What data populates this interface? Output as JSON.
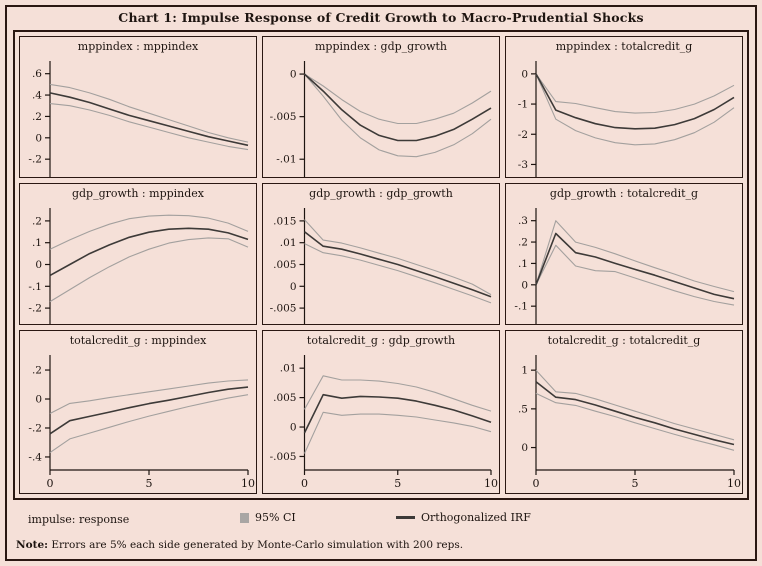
{
  "title": "Chart 1: Impulse Response of Credit Growth to Macro-Prudential Shocks",
  "footer": {
    "impulse_label": "impulse: response",
    "legend": {
      "ci_label": "95% CI",
      "irf_label": "Orthogonalized IRF"
    },
    "note_bold": "Note:",
    "note_text": " Errors are 5% each side generated by Monte-Carlo simulation with 200 reps."
  },
  "colors": {
    "background": "#f5e0d8",
    "border_dark": "#2a1712",
    "irf_line": "#3d3a38",
    "ci_line": "#a3a09e",
    "axis": "#1d1410",
    "legend_box": "#a9a6a4"
  },
  "chart_data": {
    "type": "line",
    "x": [
      0,
      1,
      2,
      3,
      4,
      5,
      6,
      7,
      8,
      9,
      10
    ],
    "xticks": {
      "values": [
        0,
        5,
        10
      ],
      "labels": [
        "0",
        "5",
        "10"
      ]
    },
    "legend_position": "bottom",
    "grid": false,
    "series_names": [
      "95% CI lower",
      "95% CI upper",
      "Orthogonalized IRF"
    ],
    "panels": [
      {
        "title": "mppindex : mppindex",
        "yticks": {
          "labels": [
            ".6",
            ".4",
            ".2",
            "0",
            "-.2"
          ],
          "values": [
            0.6,
            0.4,
            0.2,
            0,
            -0.2
          ]
        },
        "ylim": [
          -0.32,
          0.7
        ],
        "show_xaxis": false,
        "irf": [
          0.42,
          0.38,
          0.33,
          0.27,
          0.21,
          0.16,
          0.11,
          0.06,
          0.01,
          -0.03,
          -0.07
        ],
        "upper": [
          0.5,
          0.47,
          0.42,
          0.36,
          0.29,
          0.23,
          0.17,
          0.11,
          0.05,
          0.0,
          -0.04
        ],
        "lower": [
          0.32,
          0.3,
          0.26,
          0.21,
          0.15,
          0.1,
          0.05,
          0.0,
          -0.04,
          -0.08,
          -0.11
        ]
      },
      {
        "title": "mppindex : gdp_growth",
        "yticks": {
          "labels": [
            "0",
            "-.005",
            "-.01"
          ],
          "values": [
            0,
            -0.005,
            -0.01
          ]
        },
        "ylim": [
          -0.0115,
          0.0013
        ],
        "show_xaxis": false,
        "irf": [
          0,
          -0.002,
          -0.0042,
          -0.006,
          -0.0072,
          -0.0078,
          -0.0078,
          -0.0073,
          -0.0065,
          -0.0053,
          -0.004
        ],
        "upper": [
          0,
          -0.0014,
          -0.003,
          -0.0044,
          -0.0053,
          -0.0058,
          -0.0058,
          -0.0053,
          -0.0046,
          -0.0034,
          -0.002
        ],
        "lower": [
          0,
          -0.0026,
          -0.0054,
          -0.0075,
          -0.0089,
          -0.0096,
          -0.0097,
          -0.0092,
          -0.0083,
          -0.007,
          -0.0053
        ]
      },
      {
        "title": "mppindex : totalcredit_g",
        "yticks": {
          "labels": [
            "0",
            "-1",
            "-2",
            "-3"
          ],
          "values": [
            0,
            -1,
            -2,
            -3
          ]
        },
        "ylim": [
          -3.25,
          0.36
        ],
        "show_xaxis": false,
        "irf": [
          0,
          -1.2,
          -1.45,
          -1.65,
          -1.78,
          -1.82,
          -1.8,
          -1.68,
          -1.48,
          -1.18,
          -0.78
        ],
        "upper": [
          0,
          -0.92,
          -0.98,
          -1.12,
          -1.25,
          -1.3,
          -1.28,
          -1.18,
          -1.0,
          -0.73,
          -0.38
        ],
        "lower": [
          0,
          -1.5,
          -1.88,
          -2.12,
          -2.28,
          -2.35,
          -2.32,
          -2.18,
          -1.95,
          -1.6,
          -1.12
        ]
      },
      {
        "title": "gdp_growth : mppindex",
        "yticks": {
          "labels": [
            ".2",
            ".1",
            "0",
            "-.1",
            "-.2"
          ],
          "values": [
            0.2,
            0.1,
            0,
            -0.1,
            -0.2
          ]
        },
        "ylim": [
          -0.25,
          0.25
        ],
        "show_xaxis": false,
        "irf": [
          -0.05,
          0.0,
          0.05,
          0.09,
          0.125,
          0.148,
          0.162,
          0.166,
          0.162,
          0.145,
          0.115
        ],
        "upper": [
          0.07,
          0.113,
          0.152,
          0.185,
          0.21,
          0.222,
          0.226,
          0.224,
          0.213,
          0.19,
          0.152
        ],
        "lower": [
          -0.17,
          -0.115,
          -0.06,
          -0.01,
          0.035,
          0.07,
          0.098,
          0.114,
          0.122,
          0.118,
          0.08
        ]
      },
      {
        "title": "gdp_growth : gdp_growth",
        "yticks": {
          "labels": [
            ".015",
            ".01",
            ".005",
            "0",
            "-.005"
          ],
          "values": [
            0.015,
            0.01,
            0.005,
            0,
            -0.005
          ]
        },
        "ylim": [
          -0.0075,
          0.0175
        ],
        "show_xaxis": false,
        "irf": [
          0.0125,
          0.0092,
          0.0085,
          0.0074,
          0.0062,
          0.005,
          0.0036,
          0.0022,
          0.0007,
          -0.0008,
          -0.0024
        ],
        "upper": [
          0.0153,
          0.0106,
          0.0099,
          0.0088,
          0.0076,
          0.0064,
          0.005,
          0.0036,
          0.0021,
          0.0005,
          -0.0019
        ],
        "lower": [
          0.0098,
          0.0077,
          0.007,
          0.006,
          0.0048,
          0.0036,
          0.0022,
          0.0008,
          -0.0007,
          -0.0022,
          -0.0038
        ]
      },
      {
        "title": "gdp_growth : totalcredit_g",
        "yticks": {
          "labels": [
            ".3",
            ".2",
            ".1",
            "0",
            "-.1"
          ],
          "values": [
            0.3,
            0.2,
            0.1,
            0,
            -0.1
          ]
        },
        "ylim": [
          -0.16,
          0.35
        ],
        "show_xaxis": false,
        "irf": [
          0,
          0.24,
          0.15,
          0.13,
          0.1,
          0.072,
          0.045,
          0.015,
          -0.015,
          -0.045,
          -0.065
        ],
        "upper": [
          0,
          0.3,
          0.2,
          0.175,
          0.145,
          0.112,
          0.08,
          0.05,
          0.018,
          -0.008,
          -0.032
        ],
        "lower": [
          0,
          0.185,
          0.088,
          0.066,
          0.062,
          0.032,
          0.002,
          -0.028,
          -0.055,
          -0.078,
          -0.095
        ]
      },
      {
        "title": "totalcredit_g : mppindex",
        "yticks": {
          "labels": [
            ".2",
            "0",
            "-.2",
            "-.4"
          ],
          "values": [
            0.2,
            0,
            -0.2,
            -0.4
          ]
        },
        "ylim": [
          -0.49,
          0.29
        ],
        "show_xaxis": true,
        "irf": [
          -0.24,
          -0.15,
          -0.12,
          -0.09,
          -0.06,
          -0.032,
          -0.008,
          0.018,
          0.045,
          0.068,
          0.082
        ],
        "upper": [
          -0.1,
          -0.03,
          -0.012,
          0.01,
          0.03,
          0.05,
          0.07,
          0.09,
          0.11,
          0.124,
          0.132
        ],
        "lower": [
          -0.37,
          -0.275,
          -0.235,
          -0.195,
          -0.155,
          -0.118,
          -0.085,
          -0.052,
          -0.022,
          0.006,
          0.03
        ]
      },
      {
        "title": "totalcredit_g : gdp_growth",
        "yticks": {
          "labels": [
            ".01",
            ".005",
            "0",
            "-.005"
          ],
          "values": [
            0.01,
            0.005,
            0,
            -0.005
          ]
        },
        "ylim": [
          -0.0073,
          0.0119
        ],
        "show_xaxis": true,
        "irf": [
          -0.001,
          0.0055,
          0.0049,
          0.0052,
          0.0051,
          0.0049,
          0.0044,
          0.0037,
          0.0029,
          0.0019,
          0.0008
        ],
        "upper": [
          0.003,
          0.0087,
          0.008,
          0.008,
          0.0078,
          0.0074,
          0.0068,
          0.0059,
          0.0048,
          0.0037,
          0.0027
        ],
        "lower": [
          -0.0045,
          0.0025,
          0.002,
          0.0022,
          0.0022,
          0.002,
          0.0017,
          0.0012,
          0.0007,
          0.0001,
          -0.0008
        ]
      },
      {
        "title": "totalcredit_g : totalcredit_g",
        "yticks": {
          "labels": [
            "1",
            ".5",
            "0"
          ],
          "values": [
            1,
            0.5,
            0
          ]
        },
        "ylim": [
          -0.29,
          1.17
        ],
        "show_xaxis": true,
        "irf": [
          0.85,
          0.65,
          0.62,
          0.55,
          0.47,
          0.39,
          0.32,
          0.24,
          0.17,
          0.1,
          0.04
        ],
        "upper": [
          1.0,
          0.72,
          0.7,
          0.63,
          0.55,
          0.47,
          0.39,
          0.31,
          0.24,
          0.17,
          0.1
        ],
        "lower": [
          0.7,
          0.58,
          0.545,
          0.47,
          0.4,
          0.32,
          0.245,
          0.17,
          0.1,
          0.035,
          -0.035
        ]
      }
    ]
  }
}
